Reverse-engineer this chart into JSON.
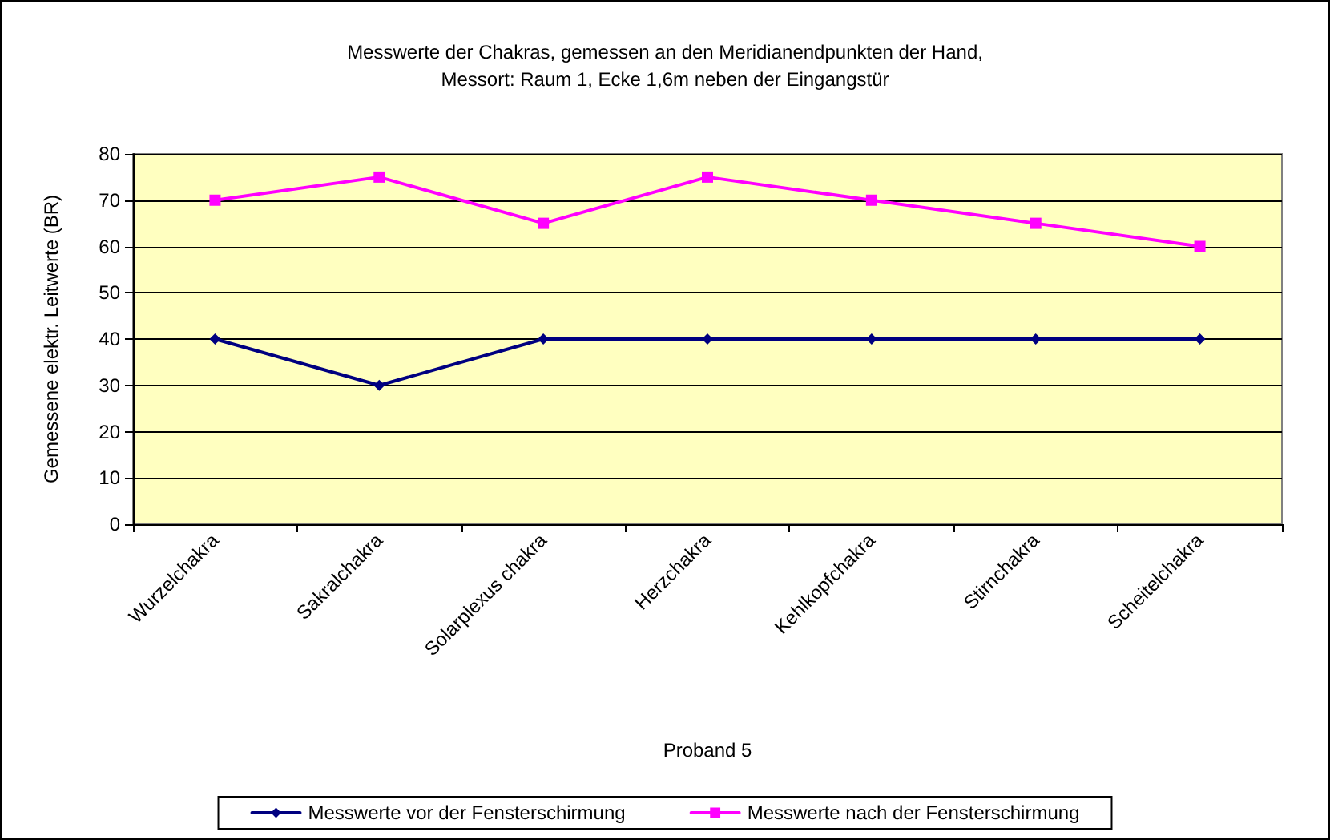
{
  "chart_data": {
    "type": "line",
    "title": "Messwerte der Chakras, gemessen an den Meridianendpunkten der Hand,\nMessort: Raum 1, Ecke 1,6m neben der Eingangstür",
    "xlabel": "Proband 5",
    "ylabel": "Gemessene elektr. Leitwerte (BR)",
    "categories": [
      "Wurzelchakra",
      "Sakralchakra",
      "Solarplexus chakra",
      "Herzchakra",
      "Kehlkopfchakra",
      "Stirnchakra",
      "Scheitelchakra"
    ],
    "series": [
      {
        "name": "Messwerte vor der Fensterschirmung",
        "color": "#000080",
        "marker": "diamond",
        "values": [
          40,
          30,
          40,
          40,
          40,
          40,
          40
        ]
      },
      {
        "name": "Messwerte nach der Fensterschirmung",
        "color": "#ff00ff",
        "marker": "square",
        "values": [
          70,
          75,
          65,
          75,
          70,
          65,
          60
        ]
      }
    ],
    "ylim": [
      0,
      80
    ],
    "yticks": [
      0,
      10,
      20,
      30,
      40,
      50,
      60,
      70,
      80
    ],
    "grid": "y",
    "legend": "bottom",
    "line_style": "solid"
  }
}
